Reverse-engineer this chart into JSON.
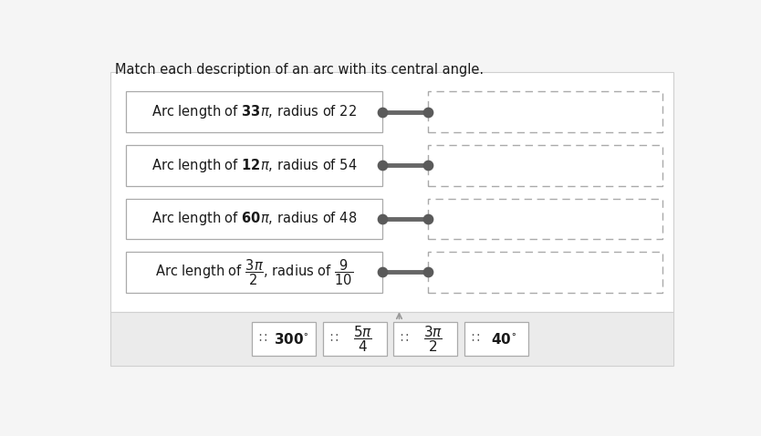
{
  "title": "Match each description of an arc with its central angle.",
  "title_fontsize": 10.5,
  "background_color": "#ffffff",
  "bottom_bg": "#ebebeb",
  "left_boxes": [
    [
      "Arc length of ",
      "33",
      false,
      ", radius of 22"
    ],
    [
      "Arc length of ",
      "12",
      false,
      ", radius of 54"
    ],
    [
      "Arc length of ",
      "60",
      false,
      ", radius of 48"
    ],
    [
      "Arc length of ",
      "3pi_over_2",
      true,
      ", radius of ",
      "9_over_10",
      true
    ]
  ],
  "left_box_labels_plain": [
    "Arc length of $\\mathbf{33}\\pi$, radius of 22",
    "Arc length of $\\mathbf{12}\\pi$, radius of 54",
    "Arc length of $\\mathbf{60}\\pi$, radius of 48",
    "Arc length of $\\dfrac{3\\pi}{2}$, radius of $\\dfrac{9}{10}$"
  ],
  "bottom_choices": [
    [
      "$\\mathbf{300}^{\\circ}$",
      "$\\dfrac{5\\pi}{4}$",
      "$\\dfrac{3\\pi}{2}$",
      "$\\mathbf{40}^{\\circ}$"
    ]
  ],
  "bottom_choice_labels": [
    "$\\mathbf{300}^{\\circ}$",
    "$\\dfrac{5\\pi}{4}$",
    "$\\dfrac{3\\pi}{2}$",
    "$\\mathbf{40}^{\\circ}$"
  ],
  "left_box_color": "#ffffff",
  "left_box_edge": "#aaaaaa",
  "right_box_edge": "#aaaaaa",
  "connector_color": "#666666",
  "connector_lw": 3.5,
  "dot_color": "#5a5a5a",
  "dot_size": 55,
  "bottom_box_edge": "#aaaaaa",
  "panel_edge": "#d0d0d0",
  "upper_panel_bg": "#ffffff",
  "fig_bg": "#f5f5f5",
  "colon_color": "#555555"
}
